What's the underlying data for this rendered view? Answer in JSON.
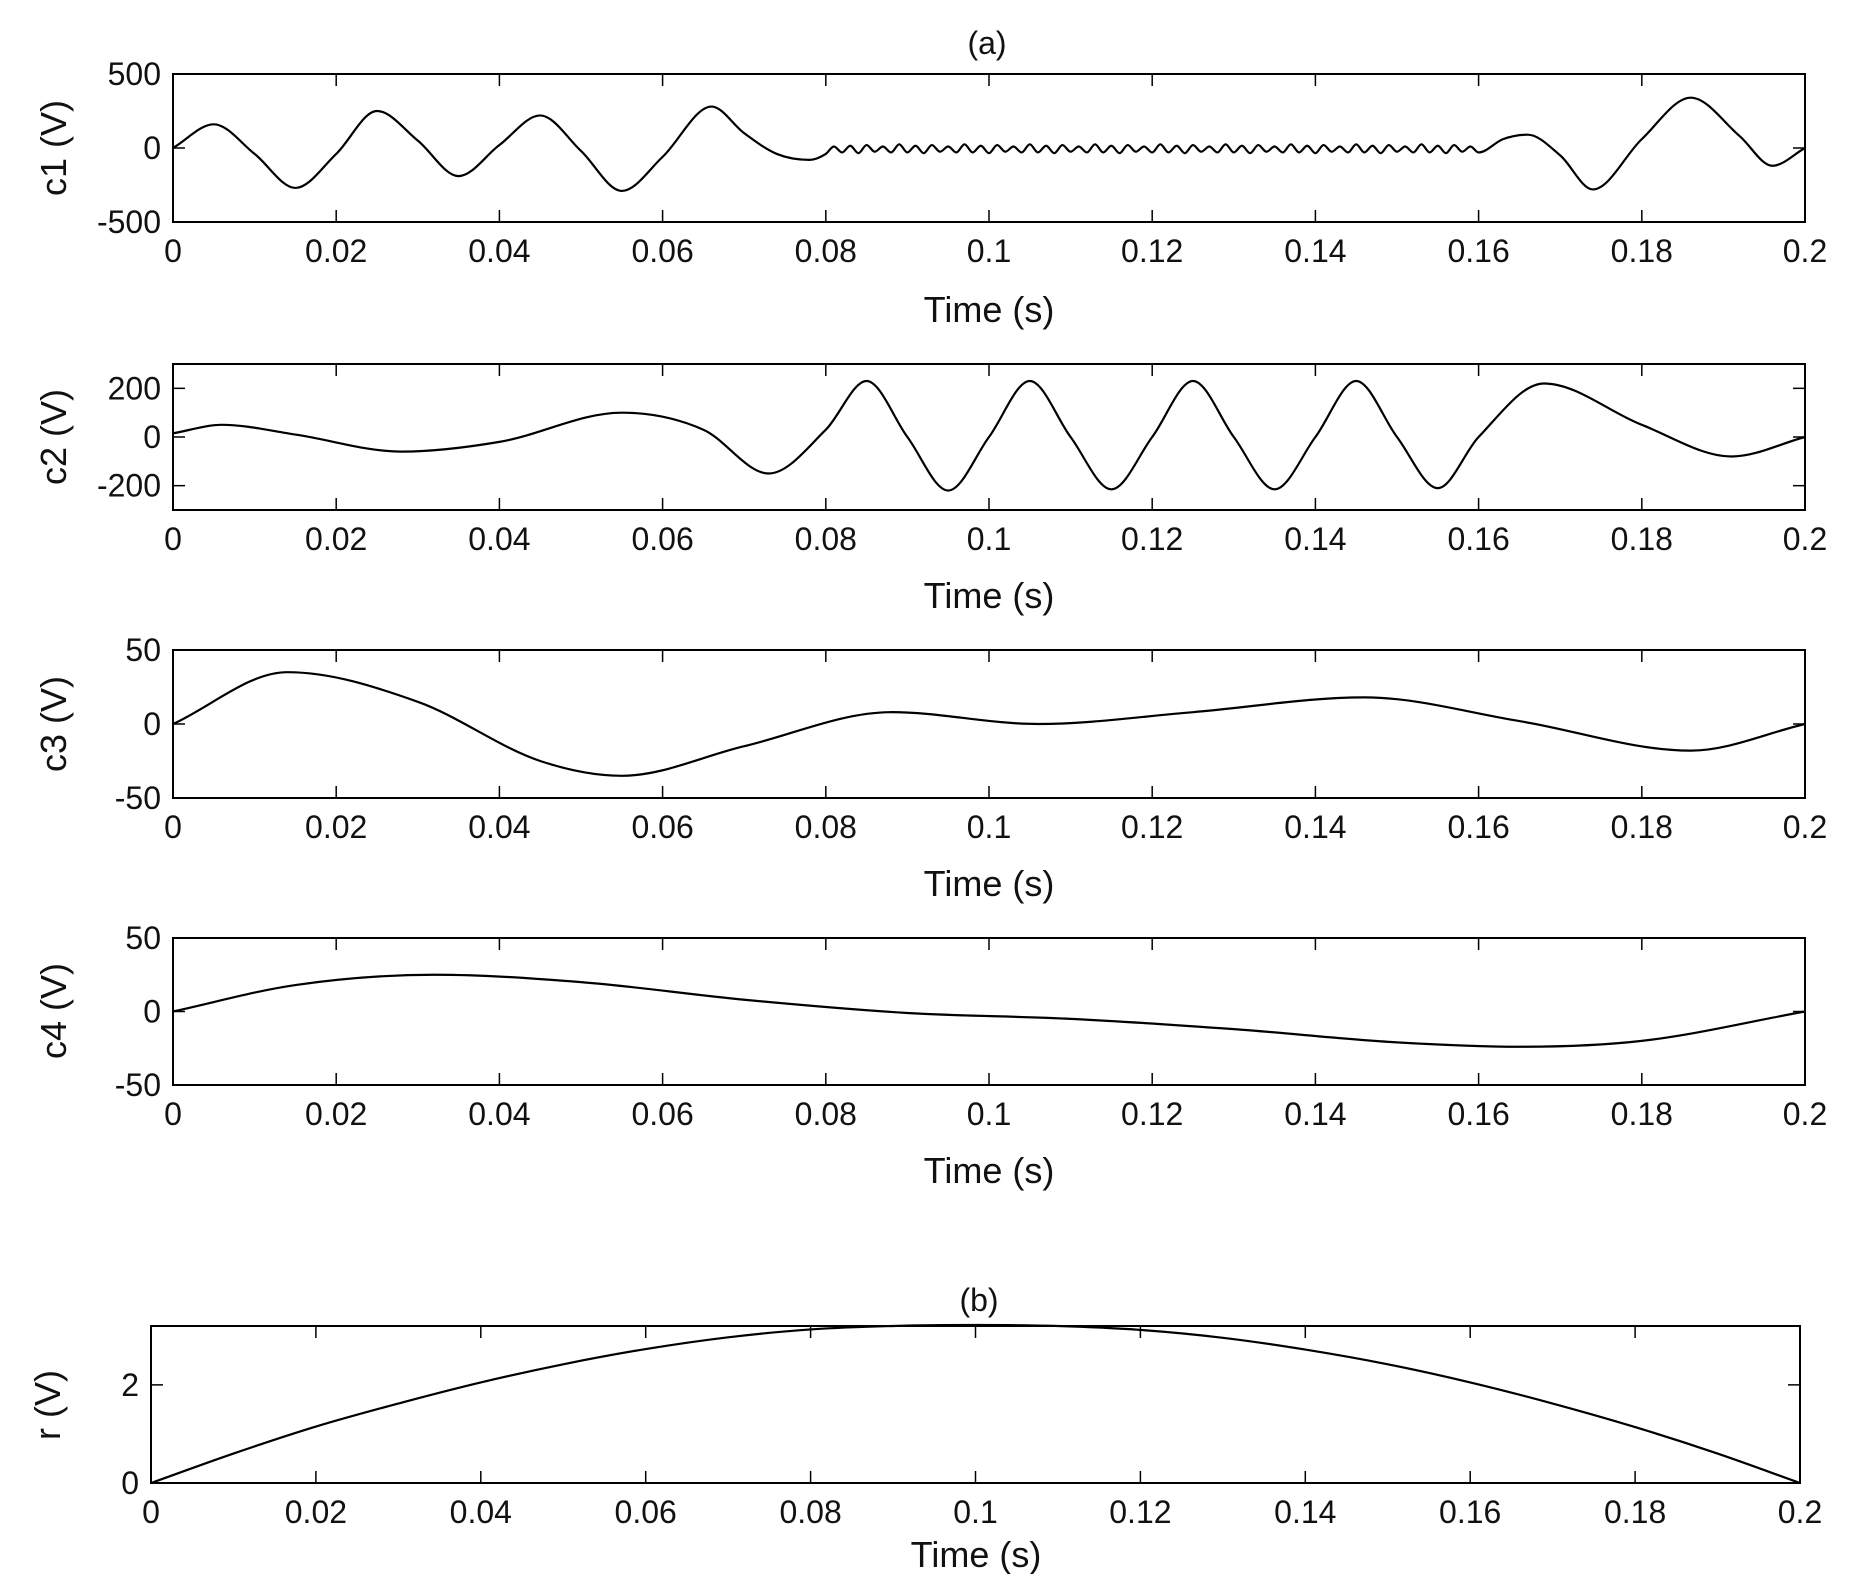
{
  "chart_data": [
    {
      "type": "line",
      "title": "(a)",
      "xlabel": "Time (s)",
      "ylabel": "c1 (V)",
      "xlim": [
        0,
        0.2
      ],
      "ylim": [
        -500,
        500
      ],
      "xticks": [
        "0",
        "0.02",
        "0.04",
        "0.06",
        "0.08",
        "0.1",
        "0.12",
        "0.14",
        "0.16",
        "0.18",
        "0.2"
      ],
      "yticks": [
        "500",
        "0",
        "-500"
      ],
      "grid": false,
      "series": [
        {
          "x": [
            0,
            0.005,
            0.01,
            0.015,
            0.02,
            0.025,
            0.03,
            0.035,
            0.04,
            0.045,
            0.05,
            0.055,
            0.06,
            0.066,
            0.07,
            0.074,
            0.078,
            0.08,
            0.081,
            0.082,
            0.083,
            0.084,
            0.085,
            0.086,
            0.087,
            0.088,
            0.089,
            0.09,
            0.091,
            0.092,
            0.093,
            0.094,
            0.095,
            0.096,
            0.097,
            0.098,
            0.099,
            0.1,
            0.101,
            0.102,
            0.103,
            0.104,
            0.105,
            0.106,
            0.107,
            0.108,
            0.109,
            0.11,
            0.111,
            0.112,
            0.113,
            0.114,
            0.115,
            0.116,
            0.117,
            0.118,
            0.119,
            0.12,
            0.121,
            0.122,
            0.123,
            0.124,
            0.125,
            0.126,
            0.127,
            0.128,
            0.129,
            0.13,
            0.131,
            0.132,
            0.133,
            0.134,
            0.135,
            0.136,
            0.137,
            0.138,
            0.139,
            0.14,
            0.141,
            0.142,
            0.143,
            0.144,
            0.145,
            0.146,
            0.147,
            0.148,
            0.149,
            0.15,
            0.151,
            0.152,
            0.153,
            0.154,
            0.155,
            0.156,
            0.157,
            0.158,
            0.159,
            0.16,
            0.163,
            0.166,
            0.17,
            0.174,
            0.18,
            0.186,
            0.192,
            0.196,
            0.2
          ],
          "y": [
            0,
            160,
            -40,
            -270,
            -40,
            250,
            50,
            -190,
            20,
            220,
            -20,
            -290,
            -60,
            280,
            100,
            -40,
            -80,
            -40,
            10,
            -30,
            15,
            -35,
            20,
            -25,
            10,
            -30,
            25,
            -30,
            15,
            -35,
            20,
            -25,
            10,
            -30,
            25,
            -30,
            15,
            -35,
            20,
            -25,
            10,
            -30,
            25,
            -30,
            15,
            -35,
            20,
            -25,
            10,
            -30,
            25,
            -30,
            15,
            -35,
            20,
            -25,
            10,
            -30,
            25,
            -30,
            15,
            -35,
            20,
            -25,
            10,
            -30,
            25,
            -30,
            15,
            -35,
            20,
            -25,
            10,
            -30,
            25,
            -30,
            15,
            -35,
            20,
            -25,
            10,
            -30,
            25,
            -30,
            15,
            -35,
            20,
            -25,
            10,
            -30,
            25,
            -30,
            15,
            -35,
            20,
            -25,
            10,
            -30,
            60,
            90,
            -50,
            -280,
            60,
            340,
            80,
            -120,
            0
          ]
        }
      ]
    },
    {
      "type": "line",
      "title": "",
      "xlabel": "Time (s)",
      "ylabel": "c2 (V)",
      "xlim": [
        0,
        0.2
      ],
      "ylim": [
        -300,
        300
      ],
      "xticks": [
        "0",
        "0.02",
        "0.04",
        "0.06",
        "0.08",
        "0.1",
        "0.12",
        "0.14",
        "0.16",
        "0.18",
        "0.2"
      ],
      "yticks": [
        "200",
        "0",
        "-200"
      ],
      "grid": false,
      "series": [
        {
          "x": [
            0,
            0.006,
            0.015,
            0.028,
            0.04,
            0.055,
            0.065,
            0.073,
            0.08,
            0.085,
            0.09,
            0.095,
            0.1,
            0.105,
            0.11,
            0.115,
            0.12,
            0.125,
            0.13,
            0.135,
            0.14,
            0.145,
            0.15,
            0.155,
            0.16,
            0.168,
            0.18,
            0.191,
            0.2
          ],
          "y": [
            15,
            50,
            10,
            -60,
            -20,
            100,
            30,
            -150,
            30,
            230,
            0,
            -220,
            0,
            230,
            0,
            -215,
            0,
            230,
            0,
            -215,
            0,
            230,
            0,
            -210,
            0,
            220,
            50,
            -80,
            0
          ]
        }
      ]
    },
    {
      "type": "line",
      "title": "",
      "xlabel": "Time (s)",
      "ylabel": "c3 (V)",
      "xlim": [
        0,
        0.2
      ],
      "ylim": [
        -50,
        50
      ],
      "xticks": [
        "0",
        "0.02",
        "0.04",
        "0.06",
        "0.08",
        "0.1",
        "0.12",
        "0.14",
        "0.16",
        "0.18",
        "0.2"
      ],
      "yticks": [
        "50",
        "0",
        "-50"
      ],
      "grid": false,
      "series": [
        {
          "x": [
            0,
            0.014,
            0.03,
            0.045,
            0.055,
            0.07,
            0.088,
            0.106,
            0.125,
            0.146,
            0.165,
            0.186,
            0.2
          ],
          "y": [
            0,
            35,
            15,
            -25,
            -35,
            -15,
            8,
            0,
            8,
            18,
            2,
            -18,
            0
          ]
        }
      ]
    },
    {
      "type": "line",
      "title": "",
      "xlabel": "Time (s)",
      "ylabel": "c4 (V)",
      "xlim": [
        0,
        0.2
      ],
      "ylim": [
        -50,
        50
      ],
      "xticks": [
        "0",
        "0.02",
        "0.04",
        "0.06",
        "0.08",
        "0.1",
        "0.12",
        "0.14",
        "0.16",
        "0.18",
        "0.2"
      ],
      "yticks": [
        "50",
        "0",
        "-50"
      ],
      "grid": false,
      "series": [
        {
          "x": [
            0,
            0.015,
            0.032,
            0.05,
            0.07,
            0.09,
            0.11,
            0.13,
            0.15,
            0.165,
            0.18,
            0.2
          ],
          "y": [
            0,
            18,
            25,
            20,
            8,
            -1,
            -5,
            -12,
            -21,
            -24,
            -20,
            0
          ]
        }
      ]
    },
    {
      "type": "line",
      "title": "(b)",
      "xlabel": "Time (s)",
      "ylabel": "r (V)",
      "xlim": [
        0,
        0.2
      ],
      "ylim": [
        0,
        3.2
      ],
      "xticks": [
        "0",
        "0.02",
        "0.04",
        "0.06",
        "0.08",
        "0.1",
        "0.12",
        "0.14",
        "0.16",
        "0.18",
        "0.2"
      ],
      "yticks": [
        "2",
        "0"
      ],
      "grid": false,
      "series": [
        {
          "x": [
            0,
            0.01,
            0.02,
            0.03,
            0.04,
            0.05,
            0.06,
            0.07,
            0.08,
            0.09,
            0.1,
            0.11,
            0.12,
            0.13,
            0.14,
            0.15,
            0.16,
            0.17,
            0.18,
            0.19,
            0.2
          ],
          "y": [
            0,
            0.6,
            1.15,
            1.62,
            2.05,
            2.42,
            2.73,
            2.97,
            3.13,
            3.2,
            3.22,
            3.2,
            3.12,
            2.96,
            2.72,
            2.42,
            2.05,
            1.62,
            1.14,
            0.6,
            0
          ]
        }
      ]
    }
  ]
}
